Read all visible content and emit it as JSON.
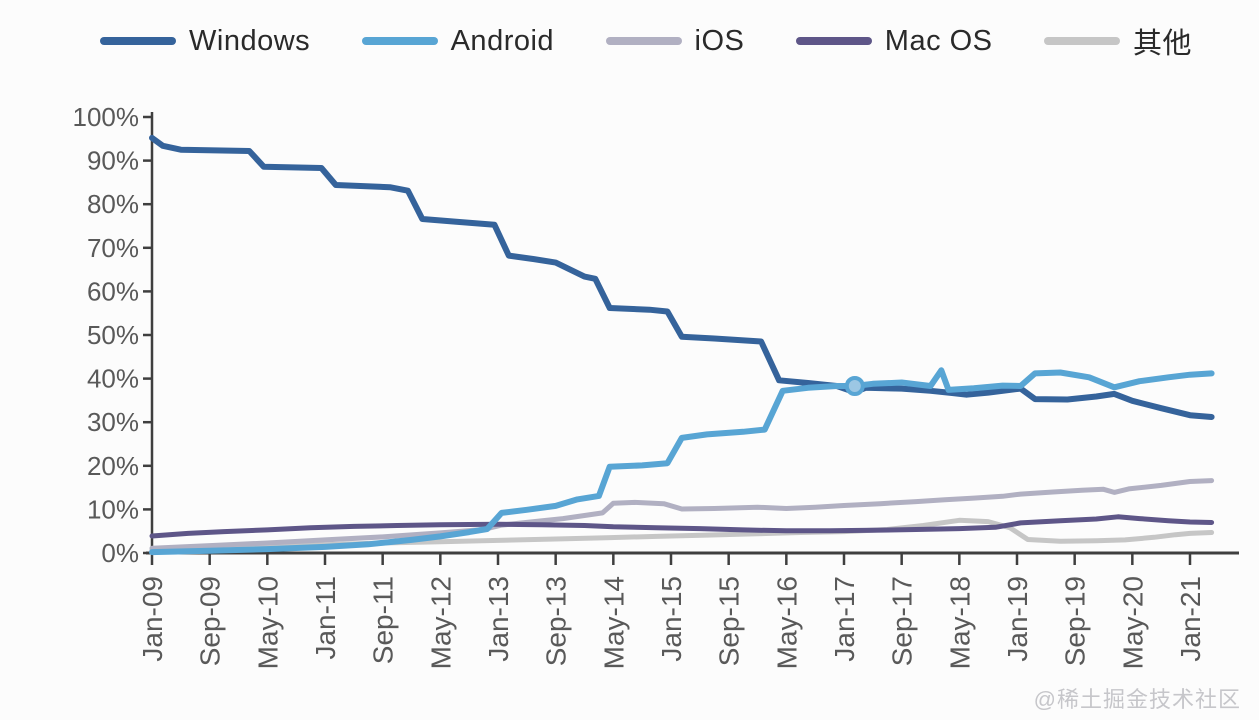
{
  "watermark": {
    "text": "@稀土掘金技术社区"
  },
  "chart_data": {
    "type": "line",
    "title": "",
    "xlabel": "",
    "ylabel": "",
    "grid": false,
    "legend_position": "top",
    "ylim": [
      0,
      100
    ],
    "x_unit": "months since Jan-2009",
    "xlim_months": [
      0,
      147
    ],
    "axis_color": "#3f3f3f",
    "tick_text_color": "#595959",
    "y_ticks": [
      "100%",
      "90%",
      "80%",
      "70%",
      "60%",
      "50%",
      "40%",
      "30%",
      "20%",
      "10%",
      "0%"
    ],
    "x_tick_months": [
      0,
      8,
      16,
      24,
      32,
      40,
      48,
      56,
      64,
      72,
      80,
      88,
      96,
      104,
      112,
      120,
      128,
      136,
      144
    ],
    "x_tick_labels": [
      "Jan-09",
      "Sep-09",
      "May-10",
      "Jan-11",
      "Sep-11",
      "May-12",
      "Jan-13",
      "Sep-13",
      "May-14",
      "Jan-15",
      "Sep-15",
      "May-16",
      "Jan-17",
      "Sep-17",
      "May-18",
      "Jan-19",
      "Sep-19",
      "May-20",
      "Jan-21"
    ],
    "series": [
      {
        "name": "Windows",
        "color": "#35639b",
        "width": 6,
        "z": 4,
        "points": [
          [
            0,
            95.2
          ],
          [
            1.5,
            93.4
          ],
          [
            4,
            92.5
          ],
          [
            13.5,
            92.2
          ],
          [
            15.5,
            88.6
          ],
          [
            23.5,
            88.3
          ],
          [
            25.5,
            84.4
          ],
          [
            33,
            83.9
          ],
          [
            35.5,
            83.1
          ],
          [
            37.5,
            76.6
          ],
          [
            42,
            76.0
          ],
          [
            47.5,
            75.3
          ],
          [
            49.5,
            68.2
          ],
          [
            53,
            67.4
          ],
          [
            56,
            66.6
          ],
          [
            60,
            63.4
          ],
          [
            61.5,
            62.9
          ],
          [
            63.5,
            56.2
          ],
          [
            69,
            55.8
          ],
          [
            71.5,
            55.4
          ],
          [
            73.5,
            49.6
          ],
          [
            78,
            49.2
          ],
          [
            84.5,
            48.5
          ],
          [
            87,
            39.6
          ],
          [
            91,
            39.0
          ],
          [
            95,
            38.3
          ],
          [
            97.5,
            36.9
          ],
          [
            99,
            37.9
          ],
          [
            104,
            37.7
          ],
          [
            108,
            37.2
          ],
          [
            111,
            36.7
          ],
          [
            113,
            36.3
          ],
          [
            116,
            36.8
          ],
          [
            119,
            37.4
          ],
          [
            120.5,
            37.7
          ],
          [
            122.5,
            35.3
          ],
          [
            127,
            35.2
          ],
          [
            131,
            35.9
          ],
          [
            133.5,
            36.5
          ],
          [
            136,
            34.9
          ],
          [
            140,
            33.2
          ],
          [
            144,
            31.6
          ],
          [
            147,
            31.2
          ]
        ]
      },
      {
        "name": "Android",
        "color": "#58a5d4",
        "width": 6,
        "z": 5,
        "marker": [
          97.5,
          38.3
        ],
        "marker_fill": "#9cc7e4",
        "points": [
          [
            0,
            0.2
          ],
          [
            8,
            0.5
          ],
          [
            16,
            0.9
          ],
          [
            24,
            1.4
          ],
          [
            30,
            2.0
          ],
          [
            36,
            3.0
          ],
          [
            40,
            3.8
          ],
          [
            44,
            4.8
          ],
          [
            46.5,
            5.5
          ],
          [
            48.5,
            9.2
          ],
          [
            52,
            9.9
          ],
          [
            56,
            10.8
          ],
          [
            59,
            12.3
          ],
          [
            62,
            13.1
          ],
          [
            63.5,
            19.8
          ],
          [
            68,
            20.1
          ],
          [
            71.5,
            20.6
          ],
          [
            73.5,
            26.4
          ],
          [
            77,
            27.2
          ],
          [
            82,
            27.8
          ],
          [
            85,
            28.3
          ],
          [
            87.5,
            37.2
          ],
          [
            91,
            37.9
          ],
          [
            95,
            38.3
          ],
          [
            97.5,
            38.3
          ],
          [
            100,
            38.8
          ],
          [
            104,
            39.1
          ],
          [
            108,
            38.3
          ],
          [
            109.5,
            41.9
          ],
          [
            110.5,
            37.4
          ],
          [
            114,
            37.8
          ],
          [
            118,
            38.4
          ],
          [
            120.5,
            38.3
          ],
          [
            122.5,
            41.2
          ],
          [
            126,
            41.4
          ],
          [
            130,
            40.3
          ],
          [
            133.5,
            38.0
          ],
          [
            137,
            39.4
          ],
          [
            141,
            40.3
          ],
          [
            144,
            40.9
          ],
          [
            147,
            41.2
          ]
        ]
      },
      {
        "name": "iOS",
        "color": "#b1b0c2",
        "width": 5,
        "z": 2,
        "points": [
          [
            0,
            1.1
          ],
          [
            8,
            1.7
          ],
          [
            16,
            2.3
          ],
          [
            24,
            3.0
          ],
          [
            32,
            3.7
          ],
          [
            40,
            4.6
          ],
          [
            46,
            5.4
          ],
          [
            48.5,
            6.4
          ],
          [
            53,
            7.2
          ],
          [
            57,
            7.9
          ],
          [
            60,
            8.6
          ],
          [
            62.5,
            9.2
          ],
          [
            64,
            11.4
          ],
          [
            67,
            11.6
          ],
          [
            71,
            11.3
          ],
          [
            73.5,
            10.1
          ],
          [
            78,
            10.2
          ],
          [
            84,
            10.5
          ],
          [
            88,
            10.2
          ],
          [
            92,
            10.5
          ],
          [
            96,
            10.9
          ],
          [
            101,
            11.3
          ],
          [
            106,
            11.8
          ],
          [
            110,
            12.2
          ],
          [
            114,
            12.6
          ],
          [
            118,
            13.0
          ],
          [
            120.5,
            13.5
          ],
          [
            125,
            14.0
          ],
          [
            129,
            14.4
          ],
          [
            132,
            14.6
          ],
          [
            133.5,
            13.9
          ],
          [
            135.5,
            14.7
          ],
          [
            140,
            15.5
          ],
          [
            144,
            16.4
          ],
          [
            147,
            16.6
          ]
        ]
      },
      {
        "name": "Mac OS",
        "color": "#5e5688",
        "width": 5,
        "z": 3,
        "points": [
          [
            0,
            3.9
          ],
          [
            5,
            4.5
          ],
          [
            10,
            4.9
          ],
          [
            16,
            5.3
          ],
          [
            22,
            5.8
          ],
          [
            28,
            6.1
          ],
          [
            34,
            6.3
          ],
          [
            40,
            6.5
          ],
          [
            48,
            6.6
          ],
          [
            54,
            6.5
          ],
          [
            60,
            6.3
          ],
          [
            64,
            6.0
          ],
          [
            70,
            5.8
          ],
          [
            76,
            5.6
          ],
          [
            82,
            5.3
          ],
          [
            88,
            5.1
          ],
          [
            94,
            5.1
          ],
          [
            100,
            5.2
          ],
          [
            106,
            5.4
          ],
          [
            112,
            5.6
          ],
          [
            117,
            5.9
          ],
          [
            120.5,
            6.9
          ],
          [
            126,
            7.4
          ],
          [
            131,
            7.8
          ],
          [
            134,
            8.3
          ],
          [
            137,
            7.9
          ],
          [
            141,
            7.4
          ],
          [
            144,
            7.1
          ],
          [
            147,
            7.0
          ]
        ]
      },
      {
        "name": "其他",
        "color": "#c6c6c6",
        "width": 5,
        "z": 1,
        "points": [
          [
            0,
            0.7
          ],
          [
            8,
            1.1
          ],
          [
            16,
            1.5
          ],
          [
            24,
            1.9
          ],
          [
            32,
            2.3
          ],
          [
            40,
            2.6
          ],
          [
            48,
            2.9
          ],
          [
            56,
            3.2
          ],
          [
            63,
            3.5
          ],
          [
            70,
            3.8
          ],
          [
            77,
            4.1
          ],
          [
            84,
            4.4
          ],
          [
            90,
            4.7
          ],
          [
            96,
            4.9
          ],
          [
            102,
            5.4
          ],
          [
            107,
            6.3
          ],
          [
            112,
            7.5
          ],
          [
            116,
            7.2
          ],
          [
            119,
            5.8
          ],
          [
            121.5,
            3.1
          ],
          [
            126,
            2.7
          ],
          [
            131,
            2.8
          ],
          [
            135,
            3.0
          ],
          [
            139,
            3.6
          ],
          [
            142,
            4.2
          ],
          [
            144,
            4.5
          ],
          [
            147,
            4.7
          ]
        ]
      }
    ]
  }
}
